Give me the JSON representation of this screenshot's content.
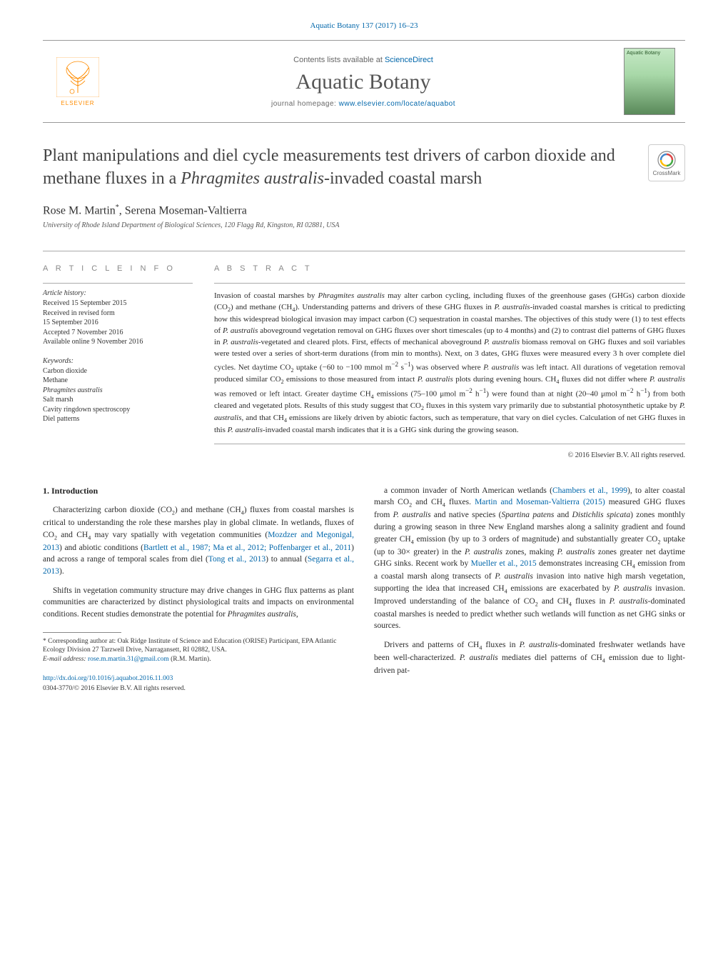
{
  "header_citation": "Aquatic Botany 137 (2017) 16–23",
  "topbar": {
    "publisher_name": "ELSEVIER",
    "contents_pre": "Contents lists available at ",
    "contents_link": "ScienceDirect",
    "journal_name": "Aquatic Botany",
    "homepage_pre": "journal homepage: ",
    "homepage_link": "www.elsevier.com/locate/aquabot",
    "cover_label": "Aquatic Botany"
  },
  "title_html": "Plant manipulations and diel cycle measurements test drivers of carbon dioxide and methane fluxes in a <em>Phragmites australis</em>-invaded coastal marsh",
  "crossmark_label": "CrossMark",
  "authors_html": "Rose M. Martin<sup>*</sup>, Serena Moseman-Valtierra",
  "affiliation": "University of Rhode Island Department of Biological Sciences, 120 Flagg Rd, Kingston, RI 02881, USA",
  "article_info": {
    "heading": "A R T I C L E   I N F O",
    "history_label": "Article history:",
    "history": [
      "Received 15 September 2015",
      "Received in revised form",
      "15 September 2016",
      "Accepted 7 November 2016",
      "Available online 9 November 2016"
    ],
    "keywords_label": "Keywords:",
    "keywords": [
      "Carbon dioxide",
      "Methane",
      "<em>Phragmites australis</em>",
      "Salt marsh",
      "Cavity ringdown spectroscopy",
      "Diel patterns"
    ]
  },
  "abstract": {
    "heading": "A B S T R A C T",
    "text_html": "Invasion of coastal marshes by <em>Phragmites australis</em> may alter carbon cycling, including fluxes of the greenhouse gases (GHGs) carbon dioxide (CO<sub>2</sub>) and methane (CH<sub>4</sub>). Understanding patterns and drivers of these GHG fluxes in <em>P. australis</em>-invaded coastal marshes is critical to predicting how this widespread biological invasion may impact carbon (C) sequestration in coastal marshes. The objectives of this study were (1) to test effects of <em>P. australis</em> aboveground vegetation removal on GHG fluxes over short timescales (up to 4 months) and (2) to contrast diel patterns of GHG fluxes in <em>P. australis</em>-vegetated and cleared plots. First, effects of mechanical aboveground <em>P. australis</em> biomass removal on GHG fluxes and soil variables were tested over a series of short-term durations (from min to months). Next, on 3 dates, GHG fluxes were measured every 3 h over complete diel cycles. Net daytime CO<sub>2</sub> uptake (−60 to −100 mmol m<sup>−2</sup> s<sup>−1</sup>) was observed where <em>P. australis</em> was left intact. All durations of vegetation removal produced similar CO<sub>2</sub> emissions to those measured from intact <em>P. australis</em> plots during evening hours. CH<sub>4</sub> fluxes did not differ where <em>P. australis</em> was removed or left intact. Greater daytime CH<sub>4</sub> emissions (75–100 μmol m<sup>−2</sup> h<sup>−1</sup>) were found than at night (20–40 μmol m<sup>−2</sup> h<sup>−1</sup>) from both cleared and vegetated plots. Results of this study suggest that CO<sub>2</sub> fluxes in this system vary primarily due to substantial photosynthetic uptake by <em>P. australis</em>, and that CH<sub>4</sub> emissions are likely driven by abiotic factors, such as temperature, that vary on diel cycles. Calculation of net GHG fluxes in this <em>P. australis</em>-invaded coastal marsh indicates that it is a GHG sink during the growing season.",
    "copyright": "© 2016 Elsevier B.V. All rights reserved."
  },
  "body": {
    "section_heading": "1. Introduction",
    "left_paras": [
      "Characterizing carbon dioxide (CO<sub>2</sub>) and methane (CH<sub>4</sub>) fluxes from coastal marshes is critical to understanding the role these marshes play in global climate. In wetlands, fluxes of CO<sub>2</sub> and CH<sub>4</sub> may vary spatially with vegetation communities (<span class=\"link\">Mozdzer and Megonigal, 2013</span>) and abiotic conditions (<span class=\"link\">Bartlett et al., 1987; Ma et al., 2012; Poffenbarger et al., 2011</span>) and across a range of temporal scales from diel (<span class=\"link\">Tong et al., 2013</span>) to annual (<span class=\"link\">Segarra et al., 2013</span>).",
      "Shifts in vegetation community structure may drive changes in GHG flux patterns as plant communities are characterized by distinct physiological traits and impacts on environmental conditions. Recent studies demonstrate the potential for <em>Phragmites australis</em>,"
    ],
    "right_paras": [
      "a common invader of North American wetlands (<span class=\"link\">Chambers et al., 1999</span>), to alter coastal marsh CO<sub>2</sub> and CH<sub>4</sub> fluxes. <span class=\"link\">Martin and Moseman-Valtierra (2015)</span> measured GHG fluxes from <em>P. australis</em> and native species (<em>Spartina patens</em> and <em>Distichlis spicata</em>) zones monthly during a growing season in three New England marshes along a salinity gradient and found greater CH<sub>4</sub> emission (by up to 3 orders of magnitude) and substantially greater CO<sub>2</sub> uptake (up to 30× greater) in the <em>P. australis</em> zones, making <em>P. australis</em> zones greater net daytime GHG sinks. Recent work by <span class=\"link\">Mueller et al., 2015</span> demonstrates increasing CH<sub>4</sub> emission from a coastal marsh along transects of <em>P. australis</em> invasion into native high marsh vegetation, supporting the idea that increased CH<sub>4</sub> emissions are exacerbated by <em>P. australis</em> invasion. Improved understanding of the balance of CO<sub>2</sub> and CH<sub>4</sub> fluxes in <em>P. australis</em>-dominated coastal marshes is needed to predict whether such wetlands will function as net GHG sinks or sources.",
      "Drivers and patterns of CH<sub>4</sub> fluxes in <em>P. australis</em>-dominated freshwater wetlands have been well-characterized. <em>P. australis</em> mediates diel patterns of CH<sub>4</sub> emission due to light-driven pat-"
    ]
  },
  "footnotes": {
    "corresponding": "* Corresponding author at: Oak Ridge Institute of Science and Education (ORISE) Participant, EPA Atlantic Ecology Division 27 Tarzwell Drive, Narragansett, RI 02882, USA.",
    "email_label": "E-mail address: ",
    "email": "rose.m.martin.31@gmail.com",
    "email_suffix": " (R.M. Martin)."
  },
  "doi": {
    "url": "http://dx.doi.org/10.1016/j.aquabot.2016.11.003",
    "copyright": "0304-3770/© 2016 Elsevier B.V. All rights reserved."
  },
  "colors": {
    "link": "#0066aa",
    "publisher_orange": "#ff8c00",
    "text": "#2a2a2a",
    "rule": "#aaaaaa"
  }
}
